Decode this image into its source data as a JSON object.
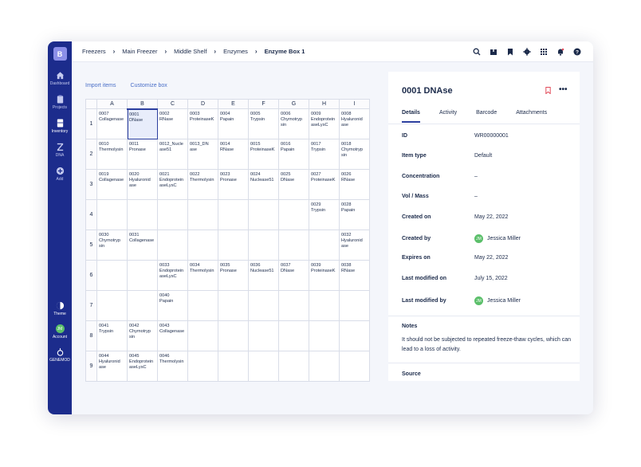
{
  "sidebar": {
    "logo": "B",
    "items": [
      {
        "label": "Dashboard",
        "icon": "home-icon"
      },
      {
        "label": "Projects",
        "icon": "clipboard-icon"
      },
      {
        "label": "Inventory",
        "icon": "freezer-icon"
      },
      {
        "label": "DNA",
        "icon": "dna-icon"
      },
      {
        "label": "Add",
        "icon": "plus-circle-icon"
      }
    ],
    "bottom": [
      {
        "label": "Theme",
        "icon": "theme-icon"
      },
      {
        "label": "Account",
        "initials": "JM"
      },
      {
        "label": "GENEMOD",
        "icon": "genemod-icon"
      }
    ]
  },
  "breadcrumb": [
    "Freezers",
    "Main Freezer",
    "Middle Shelf",
    "Enzymes",
    "Enzyme Box 1"
  ],
  "toolbar": {
    "import_label": "Import items",
    "customize_label": "Customize box"
  },
  "grid": {
    "columns": [
      "A",
      "B",
      "C",
      "D",
      "E",
      "F",
      "G",
      "H",
      "I"
    ],
    "rows": [
      {
        "num": "1",
        "cells": [
          "0007\nCollagenase",
          "0001\nDNase",
          "0002\nRNase",
          "0003\nProteinaseK",
          "0004\nPapain",
          "0005\nTrypsin",
          "0006\nChymotryp\nsin",
          "0009\nEndoprotein\naseLysC",
          "0008\nHyaluronid\nase"
        ]
      },
      {
        "num": "2",
        "cells": [
          "0010\nThermolysin",
          "0011\nPronase",
          "0012_Nucle\nase51",
          "0013_DN\nase",
          "0014\nRNase",
          "0015\nProteinaseK",
          "0016\nPapain",
          "0017\nTrypsin",
          "0018\nChymotryp\nsin"
        ]
      },
      {
        "num": "3",
        "cells": [
          "0019\nCollagenase",
          "0020\nHyaluronid\nase",
          "0021\nEndoprotein\naseLysC",
          "0022\nThermolysin",
          "0023\nPronase",
          "0024\nNuclease51",
          "0025\nDNase",
          "0027\nProteinaseK",
          "0026\nRNase"
        ]
      },
      {
        "num": "4",
        "cells": [
          "",
          "",
          "",
          "",
          "",
          "",
          "",
          "0029\nTrypsin",
          "0028\nPapain"
        ]
      },
      {
        "num": "5",
        "cells": [
          "0030\nChymotryp\nsin",
          "0031\nCollagenase",
          "",
          "",
          "",
          "",
          "",
          "",
          "0032\nHyaluronid\nase"
        ]
      },
      {
        "num": "6",
        "cells": [
          "",
          "",
          "0033\nEndoprotein\naseLysC",
          "0034\nThermolysin",
          "0035\nPronase",
          "0036\nNuclease51",
          "0037\nDNase",
          "0039\nProteinaseK",
          "0038\nRNase"
        ]
      },
      {
        "num": "7",
        "cells": [
          "",
          "",
          "0040\nPapain",
          "",
          "",
          "",
          "",
          "",
          ""
        ]
      },
      {
        "num": "8",
        "cells": [
          "0041\nTrypsin",
          "0042\nChymotryp\nsin",
          "0043\nCollagenase",
          "",
          "",
          "",
          "",
          "",
          ""
        ]
      },
      {
        "num": "9",
        "cells": [
          "0044\nHyaluronid\nase",
          "0045\nEndoprotein\naseLysC",
          "0046\nThermolysin",
          "",
          "",
          "",
          "",
          "",
          ""
        ]
      }
    ]
  },
  "panel": {
    "title": "0001 DNAse",
    "tabs": [
      "Details",
      "Activity",
      "Barcode",
      "Attachments"
    ],
    "fields": [
      {
        "label": "ID",
        "value": "WR00000001"
      },
      {
        "label": "Item type",
        "value": "Default"
      },
      {
        "label": "Concentration",
        "value": "–"
      },
      {
        "label": "Vol / Mass",
        "value": "–"
      },
      {
        "label": "Created on",
        "value": "May 22, 2022"
      },
      {
        "label": "Created by",
        "value": "Jessica Miller",
        "initials": "JM"
      },
      {
        "label": "Expires on",
        "value": "May 22, 2022"
      },
      {
        "label": "Last modified on",
        "value": "July 15, 2022"
      },
      {
        "label": "Last modified by",
        "value": "Jessica Miller",
        "initials": "JM"
      }
    ],
    "notes_title": "Notes",
    "notes_text": "It should not be subjected to repeated freeze-thaw cycles, which can lead to a loss of activity.",
    "source_title": "Source"
  },
  "colors": {
    "sidebar": "#1c2c8c",
    "accent": "#2c3f9f",
    "link": "#4a6fc8",
    "avatar": "#5bbf6a",
    "bookmark": "#e24b5a"
  }
}
